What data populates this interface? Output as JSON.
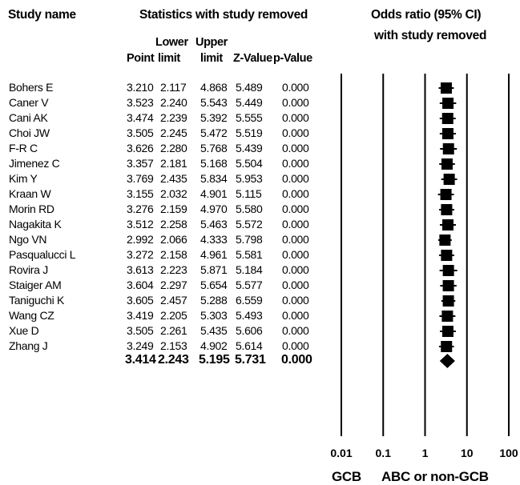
{
  "headers": {
    "study_name": "Study name",
    "stats_title": "Statistics with study removed",
    "or_title_line1": "Odds ratio (95% CI)",
    "or_title_line2": "with study removed",
    "col_lower_top": "Lower",
    "col_upper_top": "Upper",
    "col_point": "Point",
    "col_lower": "limit",
    "col_upper": "limit",
    "col_z": "Z-Value",
    "col_p": "p-Value"
  },
  "footer": {
    "left_label": "GCB",
    "right_label": "ABC or non-GCB"
  },
  "chart_data": {
    "type": "forest",
    "scale": "log",
    "xlim": [
      0.01,
      100
    ],
    "x_ticks": [
      "0.01",
      "0.1",
      "1",
      "10",
      "100"
    ],
    "x_tick_values": [
      0.01,
      0.1,
      1,
      10,
      100
    ],
    "studies": [
      {
        "name": "Bohers E",
        "point": "3.210",
        "lower": "2.117",
        "upper": "4.868",
        "z": "5.489",
        "p": "0.000"
      },
      {
        "name": "Caner V",
        "point": "3.523",
        "lower": "2.240",
        "upper": "5.543",
        "z": "5.449",
        "p": "0.000"
      },
      {
        "name": "Cani AK",
        "point": "3.474",
        "lower": "2.239",
        "upper": "5.392",
        "z": "5.555",
        "p": "0.000"
      },
      {
        "name": "Choi JW",
        "point": "3.505",
        "lower": "2.245",
        "upper": "5.472",
        "z": "5.519",
        "p": "0.000"
      },
      {
        "name": "F-R C",
        "point": "3.626",
        "lower": "2.280",
        "upper": "5.768",
        "z": "5.439",
        "p": "0.000"
      },
      {
        "name": "Jimenez C",
        "point": "3.357",
        "lower": "2.181",
        "upper": "5.168",
        "z": "5.504",
        "p": "0.000"
      },
      {
        "name": "Kim Y",
        "point": "3.769",
        "lower": "2.435",
        "upper": "5.834",
        "z": "5.953",
        "p": "0.000"
      },
      {
        "name": "Kraan W",
        "point": "3.155",
        "lower": "2.032",
        "upper": "4.901",
        "z": "5.115",
        "p": "0.000"
      },
      {
        "name": "Morin RD",
        "point": "3.276",
        "lower": "2.159",
        "upper": "4.970",
        "z": "5.580",
        "p": "0.000"
      },
      {
        "name": "Nagakita K",
        "point": "3.512",
        "lower": "2.258",
        "upper": "5.463",
        "z": "5.572",
        "p": "0.000"
      },
      {
        "name": "Ngo VN",
        "point": "2.992",
        "lower": "2.066",
        "upper": "4.333",
        "z": "5.798",
        "p": "0.000"
      },
      {
        "name": "Pasqualucci L",
        "point": "3.272",
        "lower": "2.158",
        "upper": "4.961",
        "z": "5.581",
        "p": "0.000"
      },
      {
        "name": "Rovira J",
        "point": "3.613",
        "lower": "2.223",
        "upper": "5.871",
        "z": "5.184",
        "p": "0.000"
      },
      {
        "name": "Staiger AM",
        "point": "3.604",
        "lower": "2.297",
        "upper": "5.654",
        "z": "5.577",
        "p": "0.000"
      },
      {
        "name": "Taniguchi K",
        "point": "3.605",
        "lower": "2.457",
        "upper": "5.288",
        "z": "6.559",
        "p": "0.000"
      },
      {
        "name": "Wang CZ",
        "point": "3.419",
        "lower": "2.205",
        "upper": "5.303",
        "z": "5.493",
        "p": "0.000"
      },
      {
        "name": "Xue D",
        "point": "3.505",
        "lower": "2.261",
        "upper": "5.435",
        "z": "5.606",
        "p": "0.000"
      },
      {
        "name": "Zhang J",
        "point": "3.249",
        "lower": "2.153",
        "upper": "4.902",
        "z": "5.614",
        "p": "0.000"
      }
    ],
    "summary": {
      "point": "3.414",
      "lower": "2.243",
      "upper": "5.195",
      "z": "5.731",
      "p": "0.000"
    }
  }
}
